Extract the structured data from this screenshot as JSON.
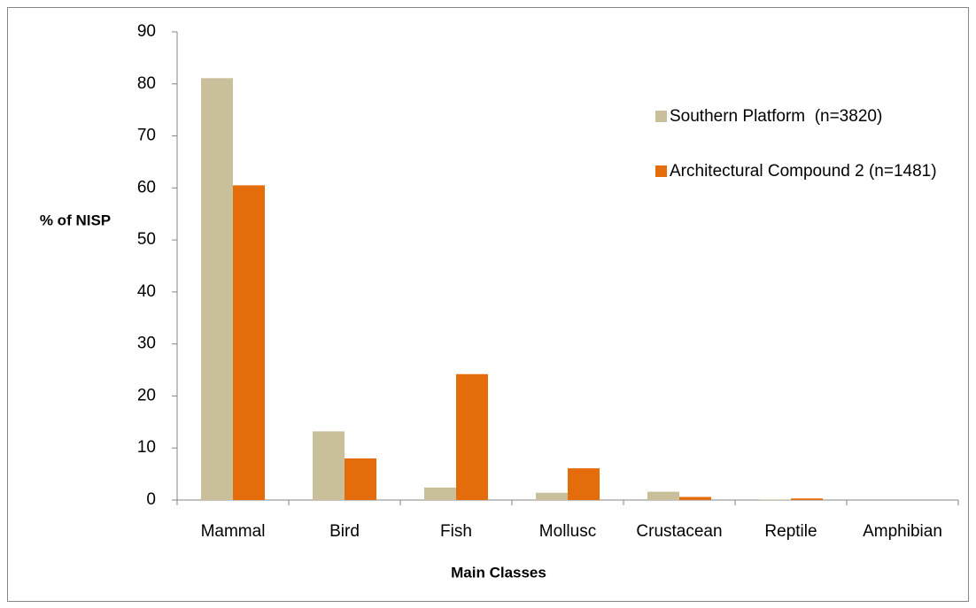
{
  "chart_data": {
    "type": "bar",
    "categories": [
      "Mammal",
      "Bird",
      "Fish",
      "Mollusc",
      "Crustacean",
      "Reptile",
      "Amphibian"
    ],
    "series": [
      {
        "name": "Southern Platform  (n=3820)",
        "color": "#c9bf9b",
        "values": [
          81.1,
          13.2,
          2.4,
          1.4,
          1.6,
          0.1,
          0
        ]
      },
      {
        "name": "Architectural Compound 2 (n=1481)",
        "color": "#e46c0a",
        "values": [
          60.5,
          8.0,
          24.2,
          6.1,
          0.6,
          0.3,
          0
        ]
      }
    ],
    "ylabel": "% of NISP",
    "xlabel": "Main Classes",
    "ylim": [
      0,
      90
    ],
    "yticks": [
      0,
      10,
      20,
      30,
      40,
      50,
      60,
      70,
      80,
      90
    ],
    "grid": false,
    "legend": "upper right"
  }
}
